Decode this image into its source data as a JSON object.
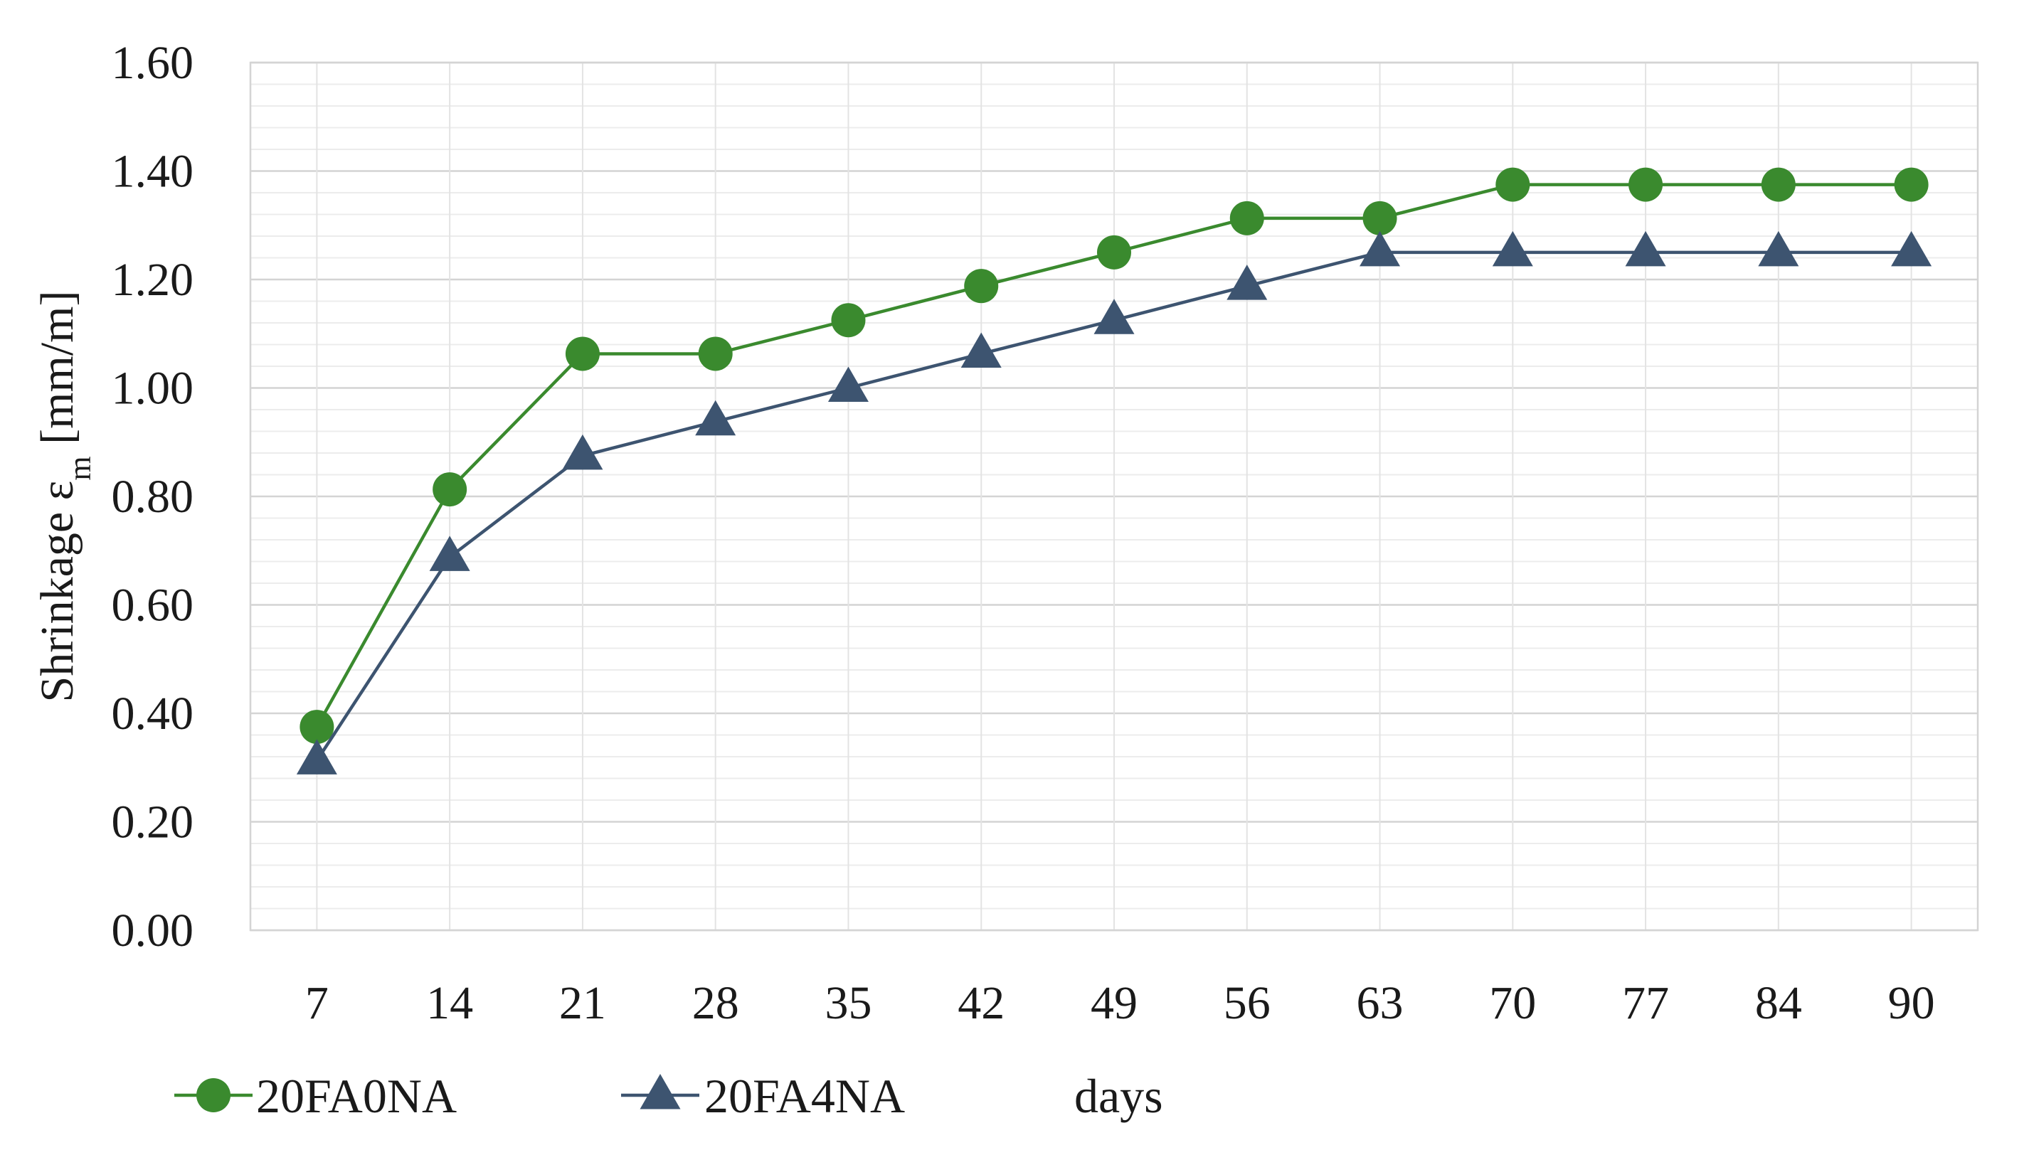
{
  "chart_data": {
    "type": "line",
    "title": "",
    "xlabel": "days",
    "ylabel": {
      "prefix": "Shrinkage ε",
      "subscript": "m",
      "suffix": " [mm/m]"
    },
    "ylim": [
      0,
      1.6
    ],
    "ymajor_step": 0.2,
    "yminor_step": 0.04,
    "grid": true,
    "categories": [
      "7",
      "14",
      "21",
      "28",
      "35",
      "42",
      "49",
      "56",
      "63",
      "70",
      "77",
      "84",
      "90"
    ],
    "y_tick_labels": [
      "0.00",
      "0.20",
      "0.40",
      "0.60",
      "0.80",
      "1.00",
      "1.20",
      "1.40",
      "1.60"
    ],
    "legend_position": "bottom-left",
    "series": [
      {
        "name": "20FA0NA",
        "marker": "circle",
        "color": "#3a8a2e",
        "values": [
          0.375,
          0.813,
          1.063,
          1.063,
          1.125,
          1.188,
          1.25,
          1.313,
          1.313,
          1.375,
          1.375,
          1.375,
          1.375
        ]
      },
      {
        "name": "20FA4NA",
        "marker": "triangle",
        "color": "#3d5470",
        "values": [
          0.313,
          0.688,
          0.875,
          0.938,
          1.0,
          1.063,
          1.125,
          1.188,
          1.25,
          1.25,
          1.25,
          1.25,
          1.25
        ]
      }
    ]
  }
}
